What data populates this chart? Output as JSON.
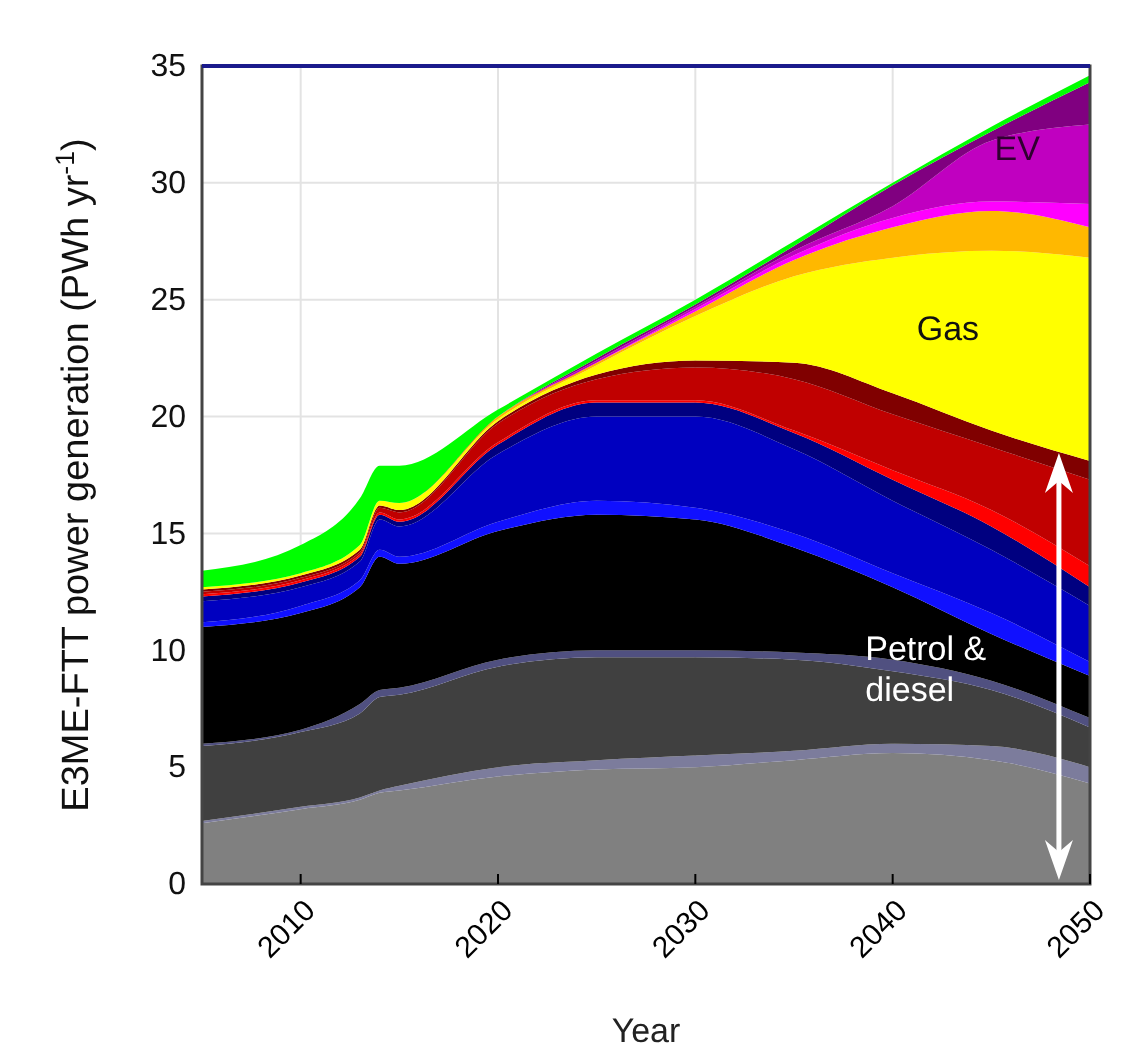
{
  "chart_data": {
    "type": "area",
    "stacked": true,
    "xlabel": "Year",
    "ylabel": "E3ME-FTT power generation (PWh yr$^{-1}$)",
    "x": [
      2005,
      2010,
      2013,
      2014,
      2015,
      2020,
      2025,
      2030,
      2035,
      2040,
      2045,
      2050
    ],
    "xlim": [
      2005,
      2050
    ],
    "xticks": [
      2010,
      2020,
      2030,
      2040,
      2050
    ],
    "ylim": [
      0,
      35
    ],
    "yticks": [
      0,
      5,
      10,
      15,
      20,
      25,
      30,
      35
    ],
    "grid": true,
    "series": [
      {
        "color": "#808080",
        "values": [
          2.6,
          3.2,
          3.6,
          3.9,
          4.0,
          4.6,
          4.9,
          5.0,
          5.3,
          5.6,
          5.3,
          4.3
        ]
      },
      {
        "color": "#7c7c9c",
        "values": [
          0.1,
          0.1,
          0.1,
          0.1,
          0.2,
          0.4,
          0.4,
          0.5,
          0.4,
          0.4,
          0.6,
          0.7
        ]
      },
      {
        "color": "#404040",
        "values": [
          3.2,
          3.2,
          3.6,
          4.0,
          3.9,
          4.3,
          4.4,
          4.2,
          3.9,
          3.1,
          2.4,
          1.7
        ]
      },
      {
        "color": "#505080",
        "values": [
          0.1,
          0.1,
          0.4,
          0.3,
          0.3,
          0.3,
          0.3,
          0.3,
          0.3,
          0.5,
          0.4,
          0.4
        ]
      },
      {
        "color": "#000000",
        "values": [
          5.0,
          5.0,
          5.0,
          5.7,
          5.3,
          5.5,
          5.8,
          5.6,
          4.5,
          3.1,
          2.0,
          1.8
        ]
      },
      {
        "color": "#1010ff",
        "values": [
          0.2,
          0.3,
          0.3,
          0.3,
          0.3,
          0.4,
          0.6,
          0.5,
          0.6,
          0.6,
          0.9,
          0.6
        ]
      },
      {
        "color": "#0000c0",
        "values": [
          0.9,
          0.8,
          0.8,
          1.3,
          1.3,
          2.9,
          3.6,
          3.9,
          3.6,
          3.1,
          2.7,
          2.4
        ]
      },
      {
        "color": "#000080",
        "values": [
          0.2,
          0.2,
          0.2,
          0.2,
          0.2,
          0.4,
          0.6,
          0.6,
          0.7,
          0.9,
          1.0,
          0.8
        ]
      },
      {
        "color": "#ff0000",
        "values": [
          0.1,
          0.1,
          0.1,
          0.1,
          0.1,
          0.1,
          0.1,
          0.1,
          0.1,
          0.4,
          0.7,
          0.9
        ]
      },
      {
        "color": "#c00000",
        "values": [
          0.1,
          0.1,
          0.1,
          0.2,
          0.3,
          0.8,
          0.9,
          1.4,
          2.2,
          2.4,
          2.7,
          3.7
        ]
      },
      {
        "color": "#800000",
        "values": [
          0.1,
          0.1,
          0.1,
          0.1,
          0.1,
          0.1,
          0.2,
          0.3,
          0.7,
          0.9,
          0.7,
          0.8
        ]
      },
      {
        "color": "#ffff00",
        "values": [
          0.1,
          0.1,
          0.2,
          0.2,
          0.3,
          0.1,
          0.4,
          1.9,
          3.7,
          5.8,
          7.7,
          8.7
        ]
      },
      {
        "color": "#ffb800",
        "values": [
          0,
          0,
          0,
          0,
          0,
          0.1,
          0.1,
          0.2,
          0.7,
          1.3,
          1.7,
          1.3
        ]
      },
      {
        "color": "#ff00ff",
        "values": [
          0,
          0,
          0,
          0,
          0,
          0,
          0,
          0.1,
          0.2,
          0.4,
          0.4,
          1.0
        ]
      },
      {
        "color": "#c000c0",
        "values": [
          0,
          0,
          0,
          0,
          0,
          0,
          0.1,
          0.1,
          0.2,
          0.5,
          2.6,
          3.4
        ]
      },
      {
        "color": "#800080",
        "values": [
          0,
          0,
          0,
          0,
          0,
          0,
          0.1,
          0.1,
          0.2,
          0.9,
          0.4,
          1.8
        ]
      },
      {
        "color": "#00ff00",
        "values": [
          0.7,
          1.2,
          2.0,
          1.5,
          1.6,
          0.3,
          0.2,
          0.2,
          0.2,
          0.1,
          0.2,
          0.3
        ]
      }
    ],
    "annotations": [
      "EV",
      "Gas",
      "Petrol & diesel"
    ]
  }
}
